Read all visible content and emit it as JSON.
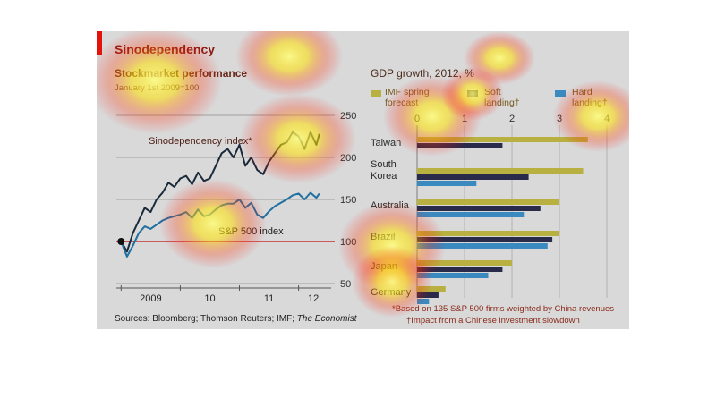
{
  "header": {
    "title": "Sinodependency"
  },
  "sources": {
    "prefix": "Sources: Bloomberg; Thomson Reuters; IMF; ",
    "italic": "The Economist"
  },
  "colors": {
    "sino": "#1a2a3a",
    "sp500": "#1f6fa0",
    "imf": "#b8b040",
    "soft": "#2a2a4a",
    "hard": "#3a8ac0",
    "accent": "#e3120b"
  },
  "chart_data": [
    {
      "type": "line",
      "title": "Stockmarket performance",
      "subtitle": "January 1st 2009=100",
      "x_ticks": [
        "2009",
        "10",
        "11",
        "12"
      ],
      "ylim": [
        50,
        250
      ],
      "y_ticks": [
        50,
        100,
        150,
        200,
        250
      ],
      "series": [
        {
          "name": "Sinodependency index*",
          "x": [
            2009.0,
            2009.1,
            2009.2,
            2009.3,
            2009.4,
            2009.5,
            2009.6,
            2009.7,
            2009.8,
            2009.9,
            2010.0,
            2010.1,
            2010.2,
            2010.3,
            2010.4,
            2010.5,
            2010.6,
            2010.7,
            2010.8,
            2010.9,
            2011.0,
            2011.1,
            2011.2,
            2011.3,
            2011.4,
            2011.5,
            2011.6,
            2011.7,
            2011.8,
            2011.9,
            2012.0,
            2012.1,
            2012.2,
            2012.3,
            2012.35
          ],
          "values": [
            100,
            88,
            110,
            125,
            140,
            135,
            150,
            158,
            170,
            165,
            175,
            178,
            168,
            182,
            172,
            175,
            190,
            205,
            210,
            200,
            215,
            190,
            200,
            185,
            180,
            195,
            205,
            215,
            218,
            230,
            225,
            210,
            230,
            215,
            228
          ]
        },
        {
          "name": "S&P 500 index",
          "x": [
            2009.0,
            2009.1,
            2009.2,
            2009.3,
            2009.4,
            2009.5,
            2009.6,
            2009.7,
            2009.8,
            2009.9,
            2010.0,
            2010.1,
            2010.2,
            2010.3,
            2010.4,
            2010.5,
            2010.6,
            2010.7,
            2010.8,
            2010.9,
            2011.0,
            2011.1,
            2011.2,
            2011.3,
            2011.4,
            2011.5,
            2011.6,
            2011.7,
            2011.8,
            2011.9,
            2012.0,
            2012.1,
            2012.2,
            2012.3,
            2012.35
          ],
          "values": [
            100,
            82,
            95,
            110,
            118,
            115,
            120,
            125,
            128,
            130,
            132,
            135,
            128,
            138,
            130,
            132,
            138,
            143,
            145,
            145,
            150,
            140,
            146,
            132,
            128,
            136,
            142,
            146,
            150,
            155,
            157,
            150,
            158,
            152,
            157
          ]
        }
      ]
    },
    {
      "type": "bar",
      "title": "GDP growth, 2012, %",
      "xlim": [
        0,
        4
      ],
      "x_ticks": [
        0,
        1,
        2,
        3,
        4
      ],
      "legend_position": "top",
      "categories": [
        "Taiwan",
        "South Korea",
        "Australia",
        "Brazil",
        "Japan",
        "Germany"
      ],
      "series": [
        {
          "name": "IMF spring forecast",
          "values": [
            3.6,
            3.5,
            3.0,
            3.0,
            2.0,
            0.6
          ]
        },
        {
          "name": "Soft landing†",
          "values": [
            1.8,
            2.35,
            2.6,
            2.85,
            1.8,
            0.45
          ]
        },
        {
          "name": "Hard landing†",
          "values": [
            0.0,
            1.25,
            2.25,
            2.75,
            1.5,
            0.25
          ]
        }
      ],
      "legend_labels": [
        {
          "line1": "IMF spring",
          "line2": "forecast"
        },
        {
          "line1": "Soft",
          "line2": "landing†"
        },
        {
          "line1": "Hard",
          "line2": "landing†"
        }
      ],
      "footnotes": [
        "*Based on 135 S&P 500 firms weighted by China revenues",
        "†Impact from a Chinese investment slowdown"
      ]
    }
  ]
}
